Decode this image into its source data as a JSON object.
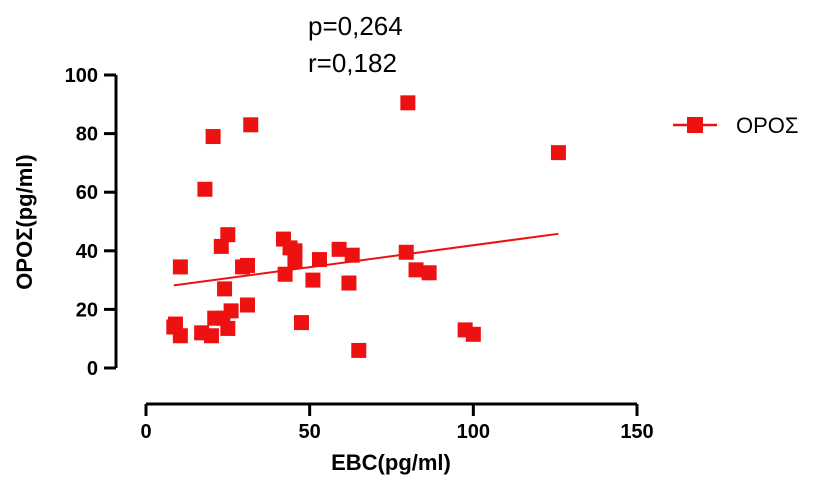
{
  "chart_data": {
    "type": "scatter",
    "title": "",
    "xlabel": "EBC(pg/ml)",
    "ylabel": "ΟΡΟΣ(pg/ml)",
    "xlim": [
      0,
      150
    ],
    "ylim": [
      0,
      100
    ],
    "x_ticks": [
      "0",
      "50",
      "100",
      "150"
    ],
    "y_ticks": [
      "0",
      "20",
      "40",
      "60",
      "80",
      "100"
    ],
    "x_tick_values": [
      0,
      50,
      100,
      150
    ],
    "y_tick_values": [
      0,
      20,
      40,
      60,
      80,
      100
    ],
    "annotations": [
      "p=0,264",
      "r=0,182"
    ],
    "legend_position": "top-right",
    "grid": false,
    "series": [
      {
        "name": "ΟΡΟΣ",
        "color": "#ee1111",
        "marker": "square",
        "points": [
          {
            "x": 8.5,
            "y": 14
          },
          {
            "x": 9.0,
            "y": 15
          },
          {
            "x": 10.5,
            "y": 11
          },
          {
            "x": 10.5,
            "y": 34.5
          },
          {
            "x": 17.0,
            "y": 12
          },
          {
            "x": 18.0,
            "y": 61
          },
          {
            "x": 20.0,
            "y": 11
          },
          {
            "x": 20.5,
            "y": 79
          },
          {
            "x": 21.0,
            "y": 17
          },
          {
            "x": 23.0,
            "y": 41.5
          },
          {
            "x": 23.5,
            "y": 17
          },
          {
            "x": 24.0,
            "y": 27
          },
          {
            "x": 25.0,
            "y": 45.5
          },
          {
            "x": 25.0,
            "y": 13.5
          },
          {
            "x": 26.0,
            "y": 19.5
          },
          {
            "x": 29.5,
            "y": 34.5
          },
          {
            "x": 31.0,
            "y": 35
          },
          {
            "x": 31.0,
            "y": 21.5
          },
          {
            "x": 32.0,
            "y": 83
          },
          {
            "x": 42.0,
            "y": 44
          },
          {
            "x": 42.5,
            "y": 32
          },
          {
            "x": 44.0,
            "y": 41
          },
          {
            "x": 45.5,
            "y": 40
          },
          {
            "x": 45.5,
            "y": 36.5
          },
          {
            "x": 47.5,
            "y": 15.5
          },
          {
            "x": 51.0,
            "y": 30
          },
          {
            "x": 53.0,
            "y": 37
          },
          {
            "x": 59.0,
            "y": 40.5
          },
          {
            "x": 62.0,
            "y": 29
          },
          {
            "x": 63.0,
            "y": 38.5
          },
          {
            "x": 65.0,
            "y": 6
          },
          {
            "x": 79.5,
            "y": 39.5
          },
          {
            "x": 80.0,
            "y": 90.5
          },
          {
            "x": 82.5,
            "y": 33.5
          },
          {
            "x": 86.5,
            "y": 32.5
          },
          {
            "x": 97.5,
            "y": 13
          },
          {
            "x": 100.0,
            "y": 11.5
          },
          {
            "x": 126.0,
            "y": 73.5
          }
        ]
      }
    ],
    "regression_line": {
      "x": [
        8.5,
        126.0
      ],
      "y": [
        28.2,
        45.8
      ],
      "color": "#ee1111"
    }
  }
}
